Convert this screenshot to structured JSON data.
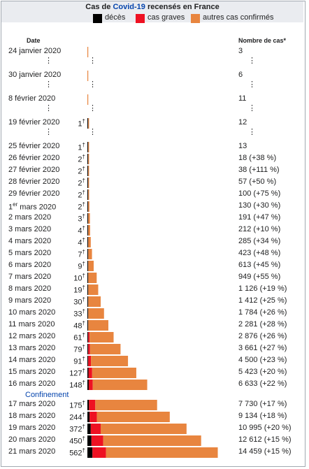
{
  "header": {
    "title_prefix": "Cas de ",
    "title_link": "Covid-19",
    "title_suffix": " recensés en France",
    "col_date": "Date",
    "col_cases": "Nombre de cas*"
  },
  "legend": [
    {
      "label": "décès",
      "color": "#000000"
    },
    {
      "label": "cas graves",
      "color": "#ee1122"
    },
    {
      "label": "autres cas confirmés",
      "color": "#e8853f"
    }
  ],
  "separator_label": "Confinement",
  "ellipsis_glyph": "⋮",
  "chart_data": {
    "type": "bar",
    "orientation": "horizontal",
    "stacked": true,
    "categories": [
      "24 janvier 2020",
      "30 janvier 2020",
      "8 février 2020",
      "19 février 2020",
      "25 février 2020",
      "26 février 2020",
      "27 février 2020",
      "28 février 2020",
      "29 février 2020",
      "1er mars 2020",
      "2 mars 2020",
      "3 mars 2020",
      "4 mars 2020",
      "5 mars 2020",
      "6 mars 2020",
      "7 mars 2020",
      "8 mars 2020",
      "9 mars 2020",
      "10 mars 2020",
      "11 mars 2020",
      "12 mars 2020",
      "13 mars 2020",
      "14 mars 2020",
      "15 mars 2020",
      "16 mars 2020",
      "17 mars 2020",
      "18 mars 2020",
      "19 mars 2020",
      "20 mars 2020",
      "21 mars 2020"
    ],
    "deaths_labels": [
      "",
      "",
      "",
      "1",
      "1",
      "2",
      "2",
      "2",
      "2",
      "2",
      "3",
      "4",
      "4",
      "7",
      "9",
      "10",
      "19",
      "30",
      "33",
      "48",
      "61",
      "79",
      "91",
      "127",
      "148",
      "175",
      "244",
      "372",
      "450",
      "562"
    ],
    "death_marker": "†",
    "cases_labels": [
      "3",
      "6",
      "11",
      "12",
      "13",
      "18 (+38 %)",
      "38 (+111 %)",
      "57 (+50 %)",
      "100 (+75 %)",
      "130 (+30 %)",
      "191 (+47 %)",
      "212 (+10 %)",
      "285 (+34 %)",
      "423 (+48 %)",
      "613 (+45 %)",
      "949 (+55 %)",
      "1 126 (+19 %)",
      "1 412 (+25 %)",
      "1 784 (+26 %)",
      "2 281 (+28 %)",
      "2 876 (+26 %)",
      "3 661 (+27 %)",
      "4 500 (+23 %)",
      "5 423 (+20 %)",
      "6 633 (+22 %)",
      "7 730 (+17 %)",
      "9 134 (+18 %)",
      "10 995 (+20 %)",
      "12 612 (+15 %)",
      "14 459 (+15 %)"
    ],
    "series": [
      {
        "name": "décès",
        "color": "#000000",
        "values": [
          0,
          0,
          0,
          1,
          1,
          2,
          2,
          2,
          2,
          2,
          3,
          4,
          4,
          7,
          9,
          10,
          19,
          30,
          33,
          48,
          61,
          79,
          91,
          127,
          148,
          175,
          244,
          372,
          450,
          562
        ]
      },
      {
        "name": "cas graves",
        "color": "#ee1122",
        "values": [
          0,
          0,
          0,
          0,
          0,
          0,
          0,
          0,
          0,
          0,
          0,
          0,
          0,
          0,
          0,
          0,
          0,
          0,
          0,
          0,
          150,
          200,
          300,
          400,
          450,
          700,
          800,
          1100,
          1300,
          1500
        ]
      },
      {
        "name": "autres cas confirmés",
        "color": "#e8853f",
        "values": [
          3,
          6,
          11,
          11,
          12,
          16,
          36,
          55,
          98,
          128,
          188,
          208,
          281,
          416,
          604,
          939,
          1107,
          1382,
          1751,
          2233,
          2665,
          3382,
          4109,
          4896,
          6035,
          6855,
          8090,
          9523,
          10862,
          12397
        ]
      }
    ],
    "totals": [
      3,
      6,
      11,
      12,
      13,
      18,
      38,
      57,
      100,
      130,
      191,
      212,
      285,
      423,
      613,
      949,
      1126,
      1412,
      1784,
      2281,
      2876,
      3661,
      4500,
      5423,
      6633,
      7730,
      9134,
      10995,
      12612,
      14459
    ],
    "gap_after": [
      "24 janvier 2020",
      "30 janvier 2020",
      "8 février 2020",
      "19 février 2020"
    ],
    "separator_after": "16 mars 2020"
  }
}
